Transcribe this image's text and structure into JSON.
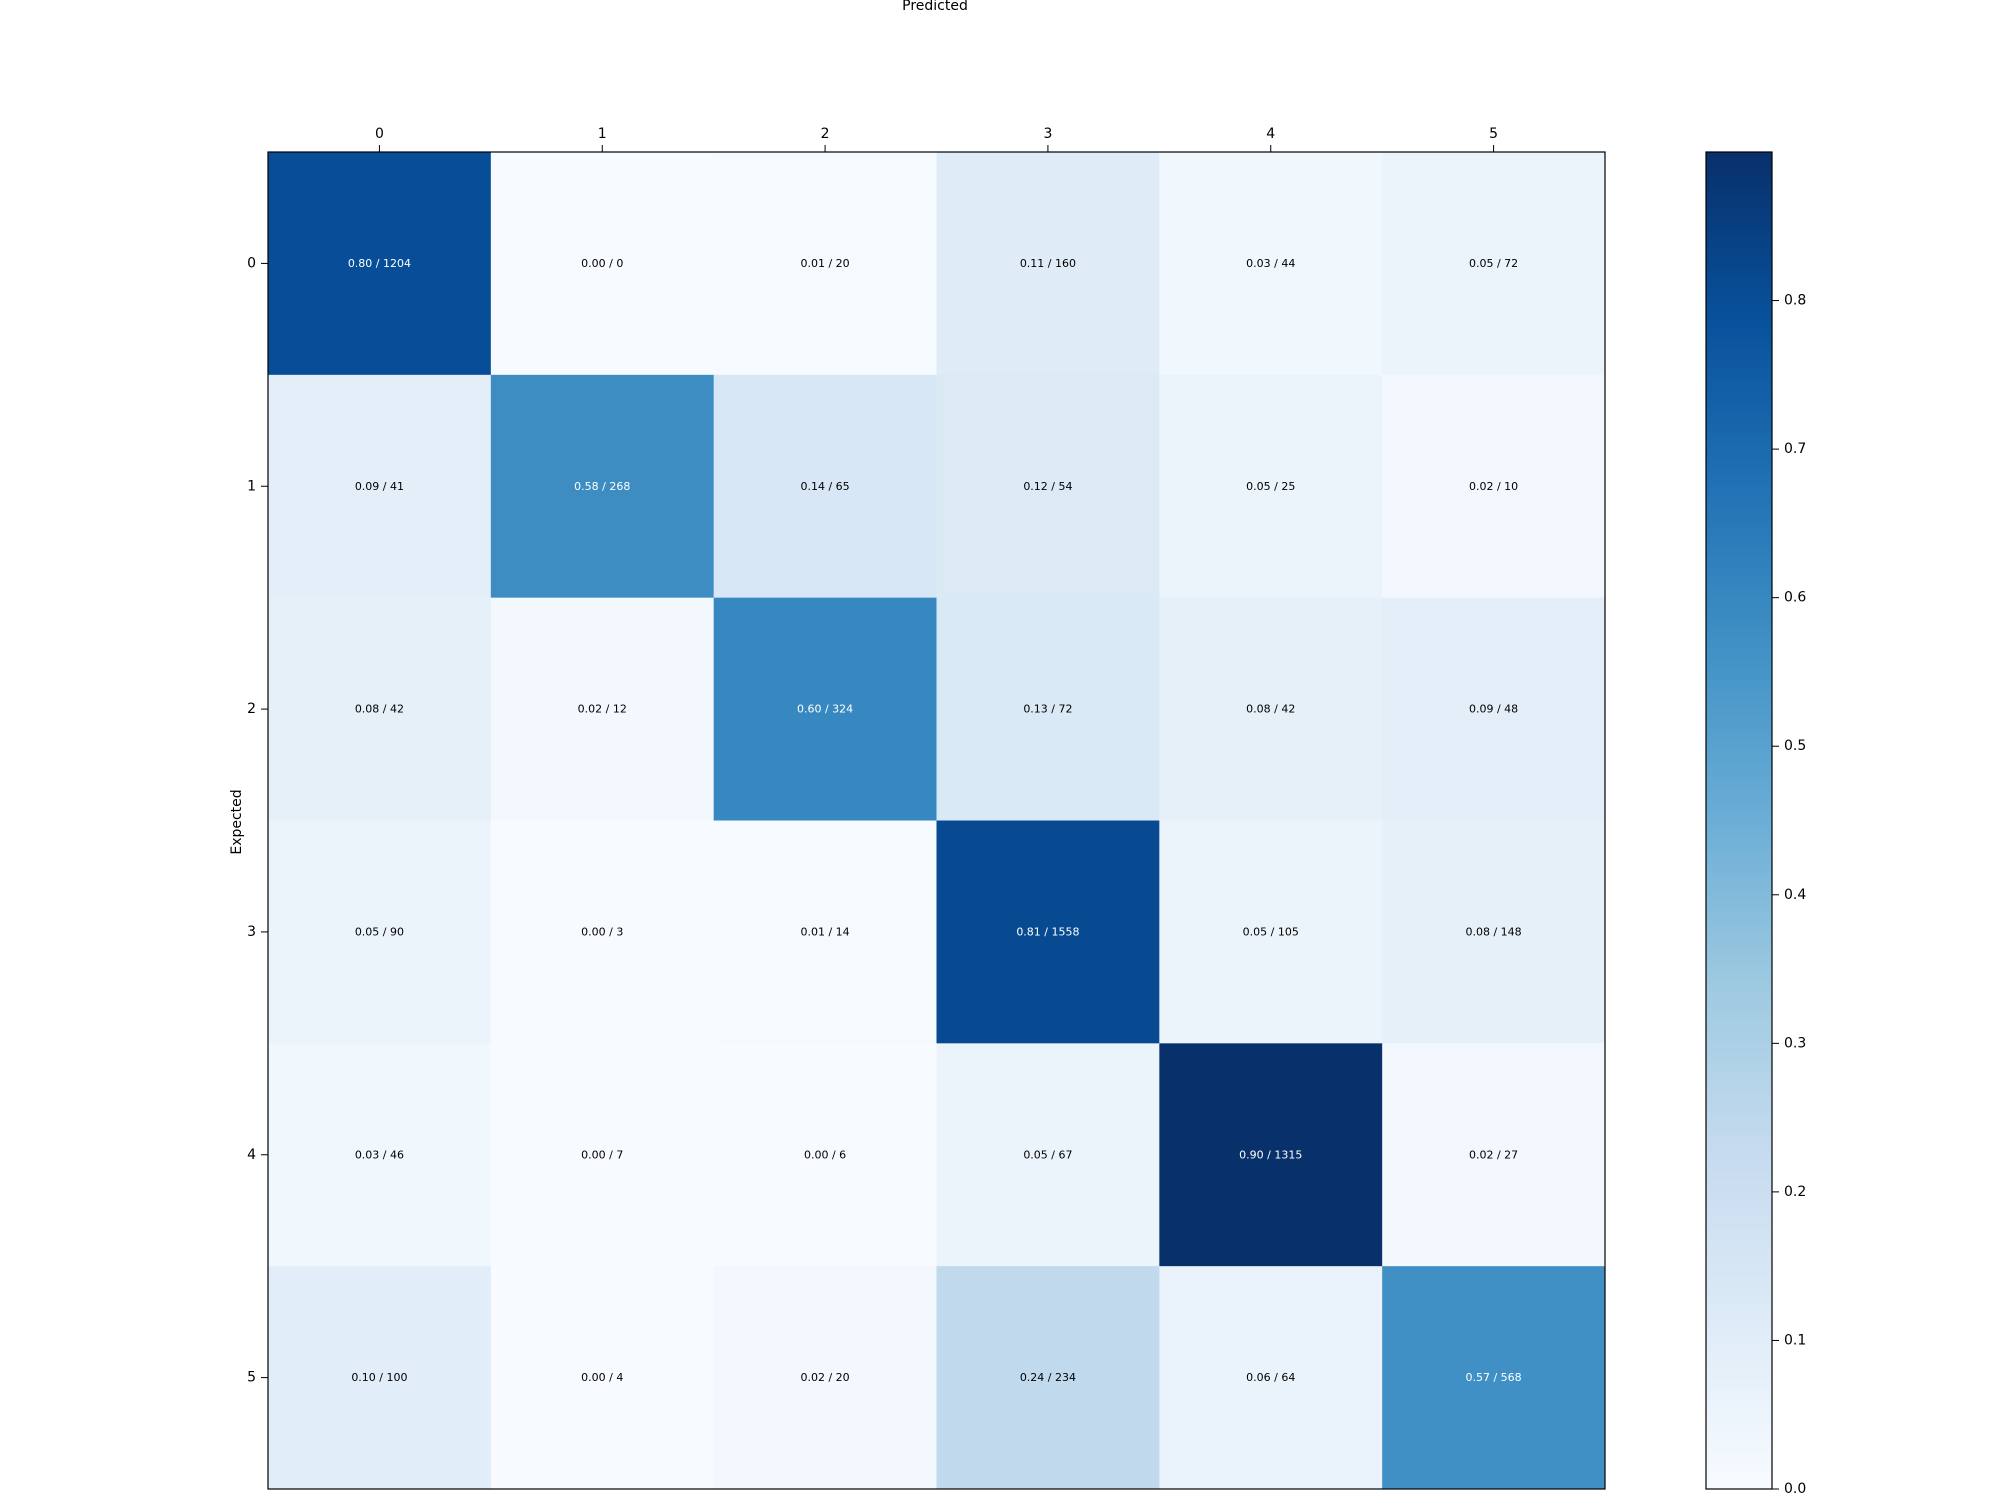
{
  "chart_data": {
    "type": "heatmap",
    "xlabel": "Predicted",
    "ylabel": "Expected",
    "x_categories": [
      "0",
      "1",
      "2",
      "3",
      "4",
      "5"
    ],
    "y_categories": [
      "0",
      "1",
      "2",
      "3",
      "4",
      "5"
    ],
    "fractions": [
      [
        0.8,
        0.0,
        0.01,
        0.11,
        0.03,
        0.05
      ],
      [
        0.09,
        0.58,
        0.14,
        0.12,
        0.05,
        0.02
      ],
      [
        0.08,
        0.02,
        0.6,
        0.13,
        0.08,
        0.09
      ],
      [
        0.05,
        0.0,
        0.01,
        0.81,
        0.05,
        0.08
      ],
      [
        0.03,
        0.0,
        0.0,
        0.05,
        0.9,
        0.02
      ],
      [
        0.1,
        0.0,
        0.02,
        0.24,
        0.06,
        0.57
      ]
    ],
    "counts": [
      [
        1204,
        0,
        20,
        160,
        44,
        72
      ],
      [
        41,
        268,
        65,
        54,
        25,
        10
      ],
      [
        42,
        12,
        324,
        72,
        42,
        48
      ],
      [
        90,
        3,
        14,
        1558,
        105,
        148
      ],
      [
        46,
        7,
        6,
        67,
        1315,
        27
      ],
      [
        100,
        4,
        20,
        234,
        64,
        568
      ]
    ],
    "cell_labels": [
      [
        "0.80 / 1204",
        "0.00 / 0",
        "0.01 / 20",
        "0.11 / 160",
        "0.03 / 44",
        "0.05 / 72"
      ],
      [
        "0.09 / 41",
        "0.58 / 268",
        "0.14 / 65",
        "0.12 / 54",
        "0.05 / 25",
        "0.02 / 10"
      ],
      [
        "0.08 / 42",
        "0.02 / 12",
        "0.60 / 324",
        "0.13 / 72",
        "0.08 / 42",
        "0.09 / 48"
      ],
      [
        "0.05 / 90",
        "0.00 / 3",
        "0.01 / 14",
        "0.81 / 1558",
        "0.05 / 105",
        "0.08 / 148"
      ],
      [
        "0.03 / 46",
        "0.00 / 7",
        "0.00 / 6",
        "0.05 / 67",
        "0.90 / 1315",
        "0.02 / 27"
      ],
      [
        "0.10 / 100",
        "0.00 / 4",
        "0.02 / 20",
        "0.24 / 234",
        "0.06 / 64",
        "0.57 / 568"
      ]
    ],
    "colormap": "Blues",
    "color_range": [
      0.0,
      0.9
    ],
    "colorbar_ticks": [
      "0.0",
      "0.1",
      "0.2",
      "0.3",
      "0.4",
      "0.5",
      "0.6",
      "0.7",
      "0.8"
    ],
    "x_tick_position": "top",
    "grid": false
  }
}
